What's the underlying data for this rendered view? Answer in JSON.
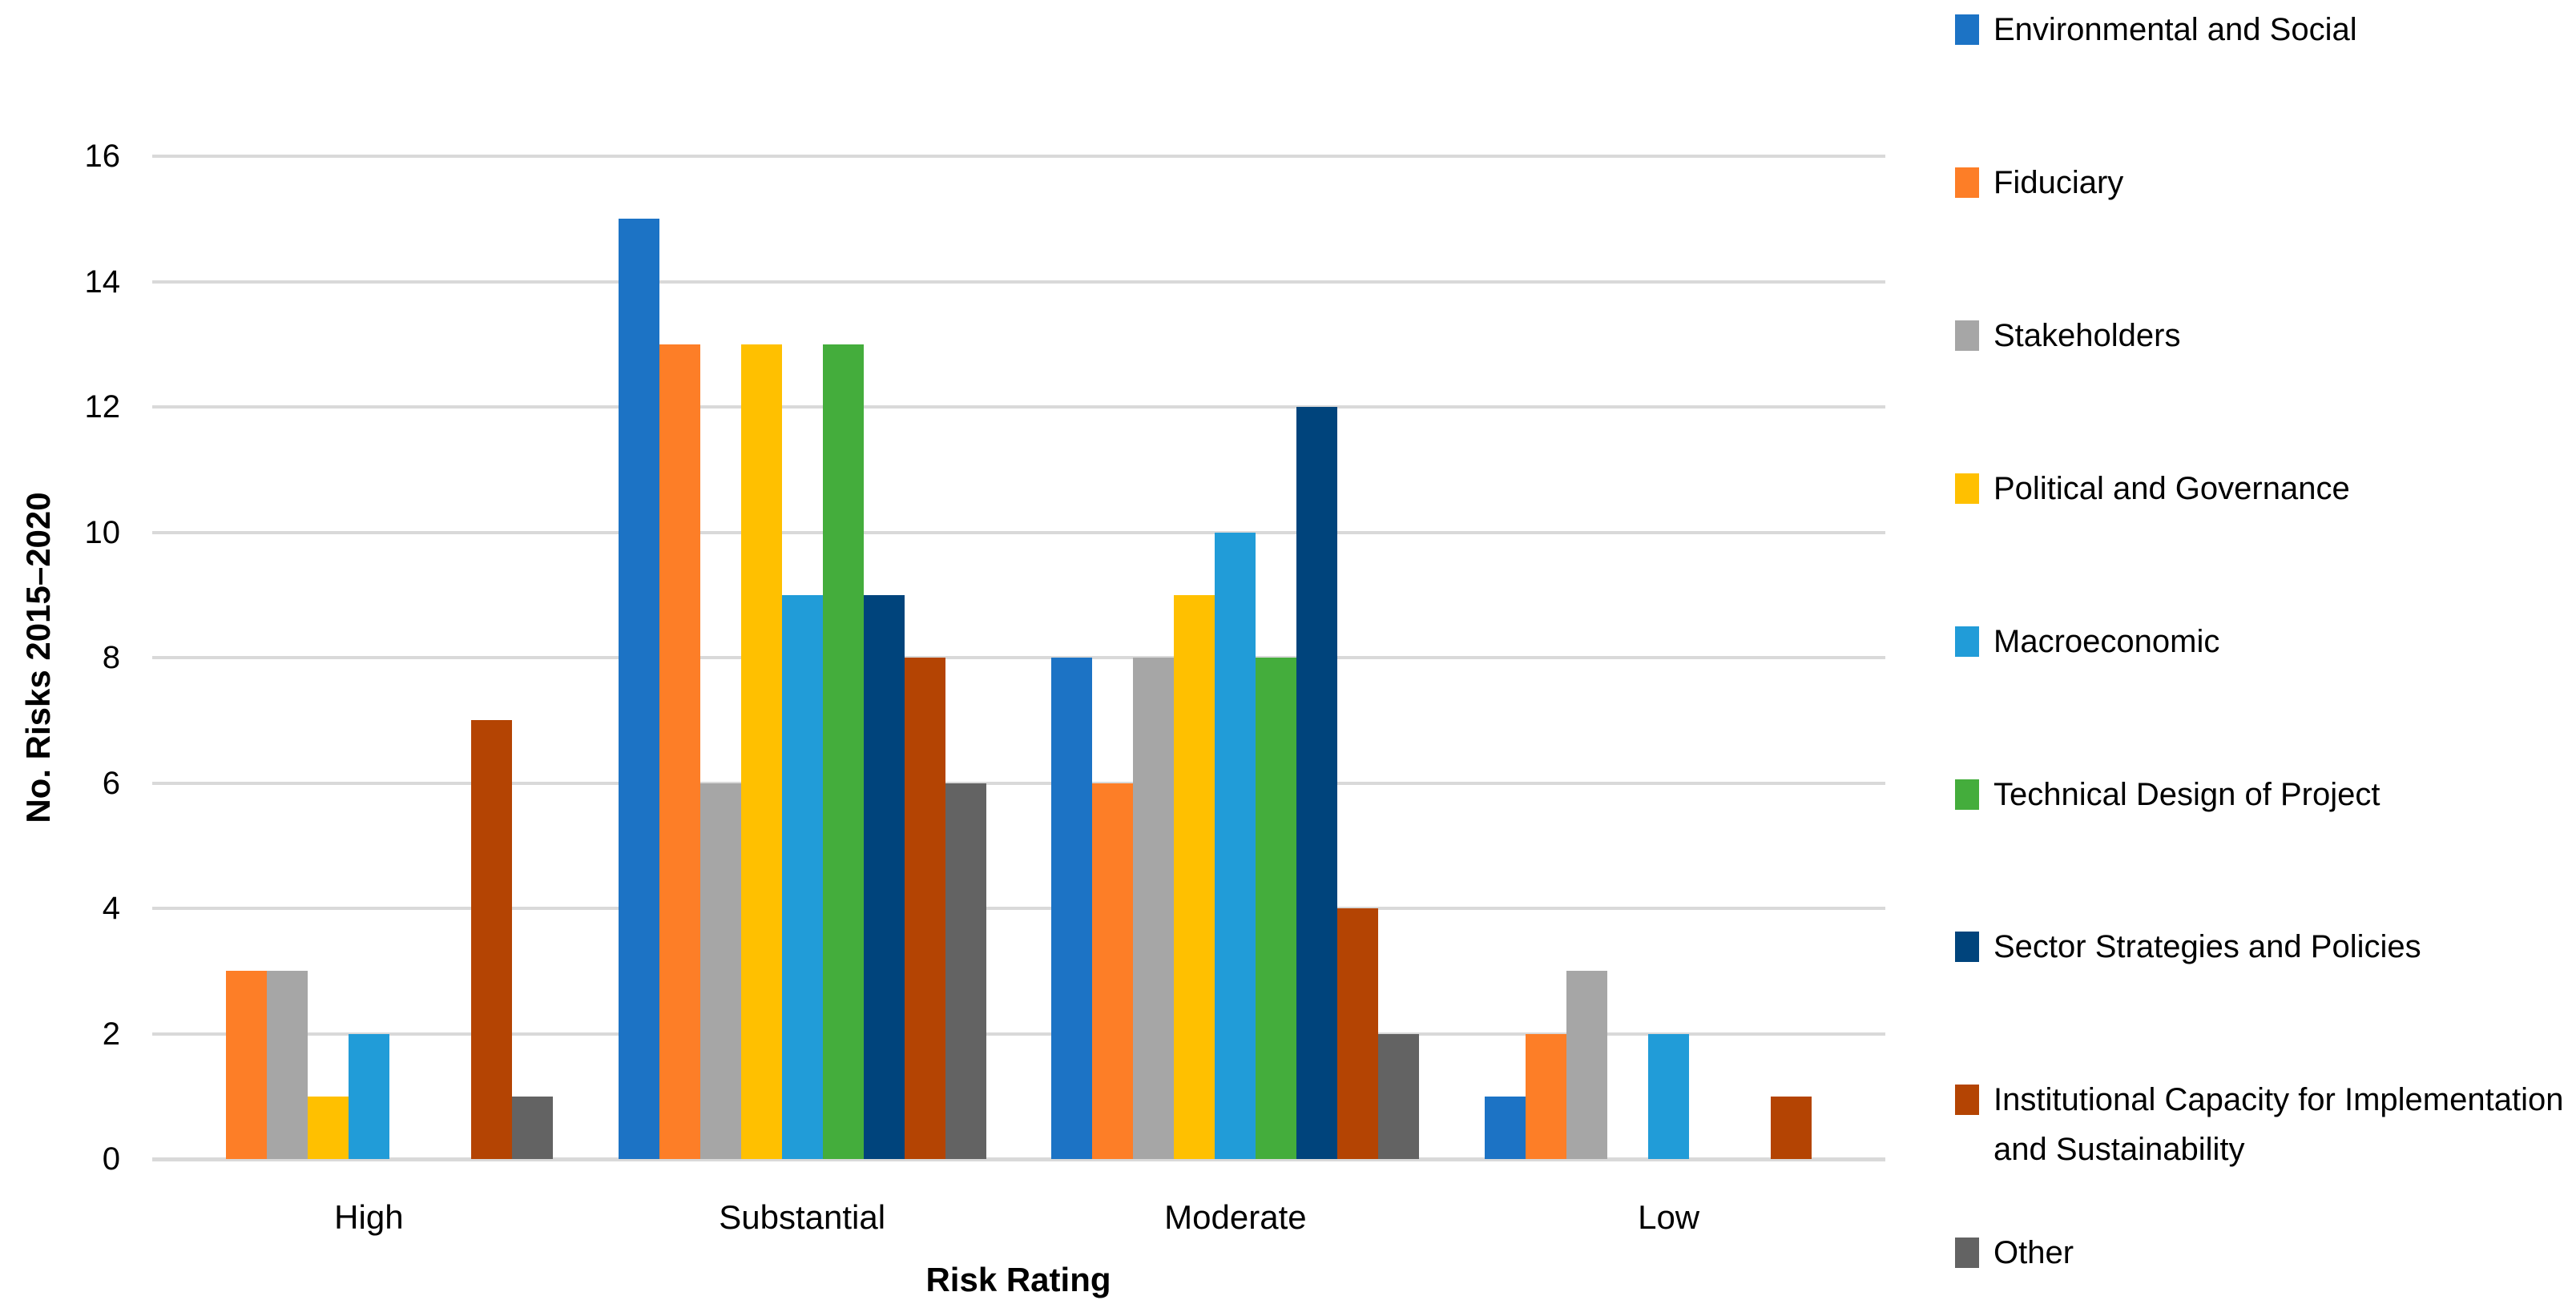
{
  "chart_data": {
    "type": "bar",
    "title": "",
    "xlabel": "Risk Rating",
    "ylabel": "No. Risks 2015–2020",
    "categories": [
      "High",
      "Substantial",
      "Moderate",
      "Low"
    ],
    "series": [
      {
        "name": "Environmental and Social",
        "color": "#1C73C5",
        "values": [
          0,
          15,
          8,
          1
        ]
      },
      {
        "name": "Fiduciary",
        "color": "#FD7E27",
        "values": [
          3,
          13,
          6,
          2
        ]
      },
      {
        "name": "Stakeholders",
        "color": "#A6A6A6",
        "values": [
          3,
          6,
          8,
          3
        ]
      },
      {
        "name": "Political and Governance",
        "color": "#FFC000",
        "values": [
          1,
          13,
          9,
          0
        ]
      },
      {
        "name": "Macroeconomic",
        "color": "#219CD8",
        "values": [
          2,
          9,
          10,
          2
        ]
      },
      {
        "name": "Technical Design of Project",
        "color": "#44AD3C",
        "values": [
          0,
          13,
          8,
          0
        ]
      },
      {
        "name": "Sector Strategies and Policies",
        "color": "#00447C",
        "values": [
          0,
          9,
          12,
          0
        ]
      },
      {
        "name": "Institutional Capacity for Implementation and Sustainability",
        "color": "#B44403",
        "values": [
          7,
          8,
          4,
          1
        ]
      },
      {
        "name": "Other",
        "color": "#636363",
        "values": [
          1,
          6,
          2,
          0
        ]
      }
    ],
    "ylim": [
      0,
      16
    ],
    "yticks": [
      0,
      2,
      4,
      6,
      8,
      10,
      12,
      14,
      16
    ],
    "grid": true,
    "grid_color": "#D9D9D9",
    "legend_position": "right"
  }
}
